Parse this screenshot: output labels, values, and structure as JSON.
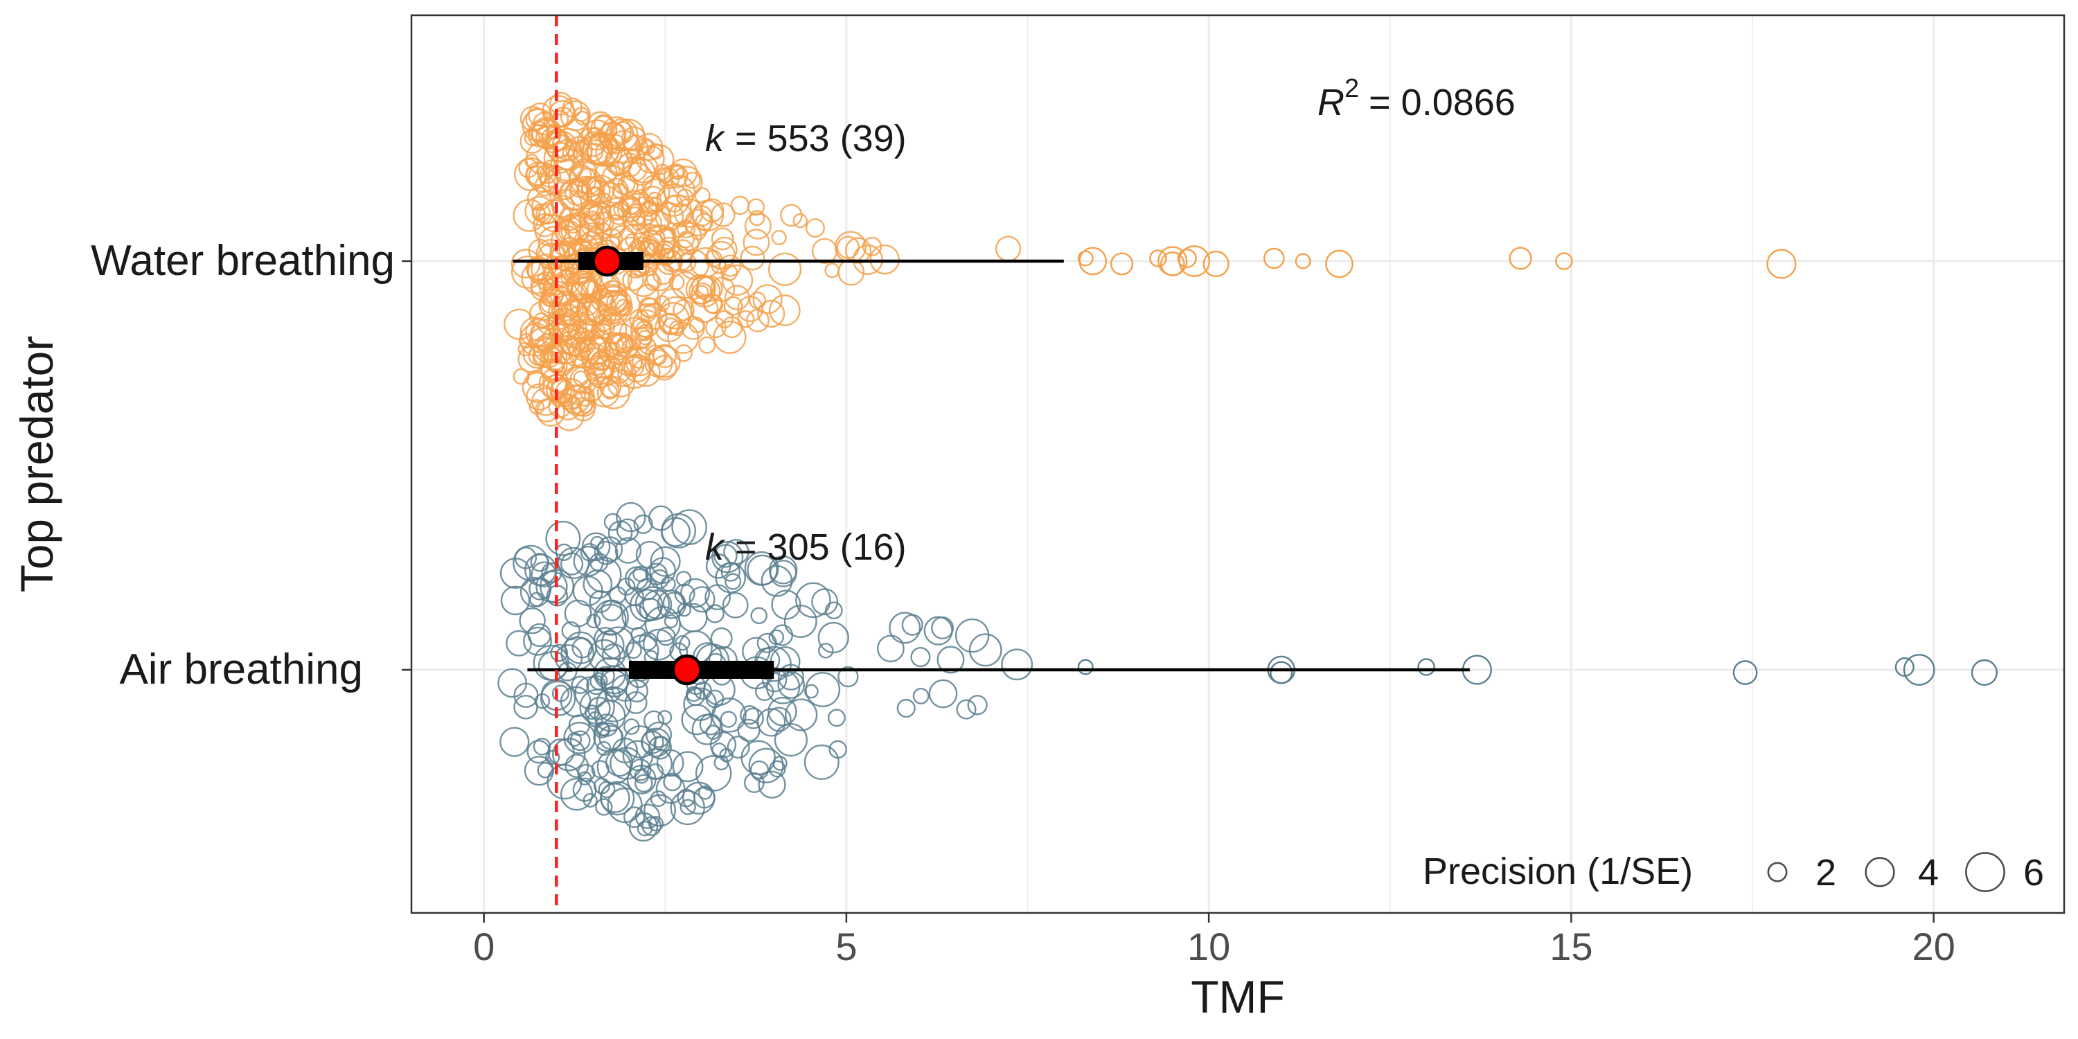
{
  "chart_data": {
    "type": "scatter",
    "subtype": "orchard-plot",
    "xlabel": "TMF",
    "ylabel": "Top predator",
    "xlim": [
      -1,
      21.8
    ],
    "x_ticks": [
      0,
      5,
      10,
      15,
      20
    ],
    "x_tick_labels": [
      "0",
      "5",
      "10",
      "15",
      "20"
    ],
    "reference_line": {
      "x": 1,
      "style": "dashed",
      "color": "#ff2020"
    },
    "grid": true,
    "r2_label": {
      "prefix": "R",
      "superscript": "2",
      "value": "= 0.0866"
    },
    "categories": [
      "Water breathing",
      "Air breathing"
    ],
    "series": [
      {
        "name": "Water breathing",
        "color": "#f5a04a",
        "k_label": {
          "italic": "k",
          "rest": "= 553 (39)"
        },
        "k": 553,
        "studies": 39,
        "estimate": 1.7,
        "ci": [
          1.3,
          2.2
        ],
        "pi": [
          0.4,
          8.0
        ],
        "extreme_points": [
          8.3,
          8.4,
          8.8,
          9.3,
          9.5,
          9.5,
          9.7,
          9.8,
          10.1,
          10.9,
          11.3,
          11.8,
          14.3,
          14.9,
          17.9
        ]
      },
      {
        "name": "Air breathing",
        "color": "#5a7f8f",
        "k_label": {
          "italic": "k",
          "rest": "= 305 (16)"
        },
        "k": 305,
        "studies": 16,
        "estimate": 2.8,
        "ci": [
          2.0,
          4.0
        ],
        "pi": [
          0.6,
          13.6
        ],
        "extreme_points": [
          8.3,
          11.0,
          11.0,
          13.0,
          13.7,
          17.4,
          19.6,
          19.8,
          20.7
        ]
      }
    ],
    "legend": {
      "title": "Precision (1/SE)",
      "position": "bottom-right",
      "sizes": [
        2,
        4,
        6
      ],
      "labels": [
        "2",
        "4",
        "6"
      ]
    }
  }
}
